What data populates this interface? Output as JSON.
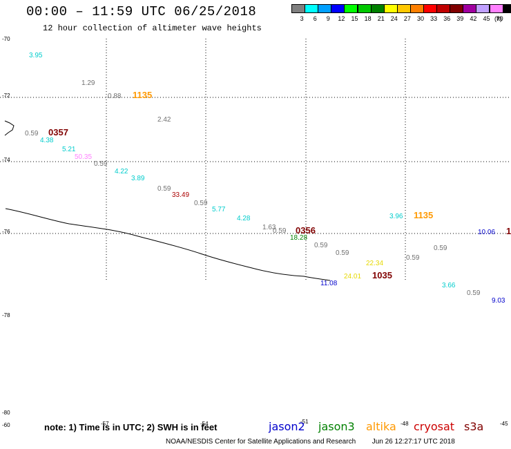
{
  "header": {
    "title": "00:00 – 11:59 UTC 06/25/2018",
    "subtitle": "12 hour collection of altimeter wave heights"
  },
  "legend": {
    "unit": "(ft)",
    "bins": [
      {
        "label": "3",
        "color": "#808080"
      },
      {
        "label": "6",
        "color": "#00ffff"
      },
      {
        "label": "9",
        "color": "#00a0ff"
      },
      {
        "label": "12",
        "color": "#0000ff"
      },
      {
        "label": "15",
        "color": "#00ff00"
      },
      {
        "label": "18",
        "color": "#00c800"
      },
      {
        "label": "21",
        "color": "#008000"
      },
      {
        "label": "24",
        "color": "#ffff00"
      },
      {
        "label": "27",
        "color": "#ffc800"
      },
      {
        "label": "30",
        "color": "#ff8000"
      },
      {
        "label": "33",
        "color": "#ff0000"
      },
      {
        "label": "36",
        "color": "#c00000"
      },
      {
        "label": "39",
        "color": "#800000"
      },
      {
        "label": "42",
        "color": "#a000a0"
      },
      {
        "label": "45",
        "color": "#c0a0ff"
      },
      {
        "label": "70",
        "color": "#ff80ff"
      },
      {
        "label": "",
        "color": "#000000"
      }
    ]
  },
  "axes": {
    "lat_labels": [
      "-70",
      "-72",
      "-74",
      "-76",
      "-78",
      "-80"
    ],
    "lon_labels": [
      "-60",
      "-57",
      "-54",
      "-51",
      "-48",
      "-45"
    ]
  },
  "wave_labels": [
    {
      "text": "3.95",
      "color": "#00cccc"
    },
    {
      "text": "1.29",
      "color": "#707070"
    },
    {
      "text": "0.88",
      "color": "#707070"
    },
    {
      "text": "1135",
      "color": "#ff9900",
      "bold": true
    },
    {
      "text": "2.42",
      "color": "#707070"
    },
    {
      "text": "0.59",
      "color": "#707070"
    },
    {
      "text": "0357",
      "color": "#800000",
      "bold": true
    },
    {
      "text": "4.38",
      "color": "#00cccc"
    },
    {
      "text": "5.21",
      "color": "#00cccc"
    },
    {
      "text": "50.35",
      "color": "#ff80ff"
    },
    {
      "text": "0.59",
      "color": "#707070"
    },
    {
      "text": "4.22",
      "color": "#00cccc"
    },
    {
      "text": "3.89",
      "color": "#00cccc"
    },
    {
      "text": "0.59",
      "color": "#707070"
    },
    {
      "text": "33.49",
      "color": "#aa0000"
    },
    {
      "text": "0.59",
      "color": "#707070"
    },
    {
      "text": "5.77",
      "color": "#00cccc"
    },
    {
      "text": "4.28",
      "color": "#00cccc"
    },
    {
      "text": "1.63",
      "color": "#707070"
    },
    {
      "text": "0.59",
      "color": "#707070"
    },
    {
      "text": "0356",
      "color": "#800000",
      "bold": true
    },
    {
      "text": "18.28",
      "color": "#008000"
    },
    {
      "text": "0.59",
      "color": "#707070"
    },
    {
      "text": "0.59",
      "color": "#707070"
    },
    {
      "text": "3.96",
      "color": "#00cccc"
    },
    {
      "text": "1135",
      "color": "#ff9900",
      "bold": true
    },
    {
      "text": "10.06",
      "color": "#0000cc"
    },
    {
      "text": "1",
      "color": "#800000",
      "bold": true
    },
    {
      "text": "0.59",
      "color": "#707070"
    },
    {
      "text": "0.59",
      "color": "#707070"
    },
    {
      "text": "22.34",
      "color": "#e6d800"
    },
    {
      "text": "24.01",
      "color": "#e6d800"
    },
    {
      "text": "1035",
      "color": "#800000",
      "bold": true
    },
    {
      "text": "11.08",
      "color": "#0000cc"
    },
    {
      "text": "3.66",
      "color": "#00cccc"
    },
    {
      "text": "0.59",
      "color": "#707070"
    },
    {
      "text": "9.03",
      "color": "#0000cc"
    }
  ],
  "footer": {
    "note": "note: 1) Time is in UTC; 2) SWH is in feet",
    "satellites": [
      {
        "name": "jason2",
        "color": "#0000cc"
      },
      {
        "name": "jason3",
        "color": "#008000"
      },
      {
        "name": "altika",
        "color": "#ff9900"
      },
      {
        "name": "cryosat",
        "color": "#cc0000"
      },
      {
        "name": "s3a",
        "color": "#800000"
      }
    ],
    "credit": "NOAA/NESDIS Center for Satellite Applications and Research",
    "timestamp": "Jun 26 12:27:17 UTC 2018"
  }
}
